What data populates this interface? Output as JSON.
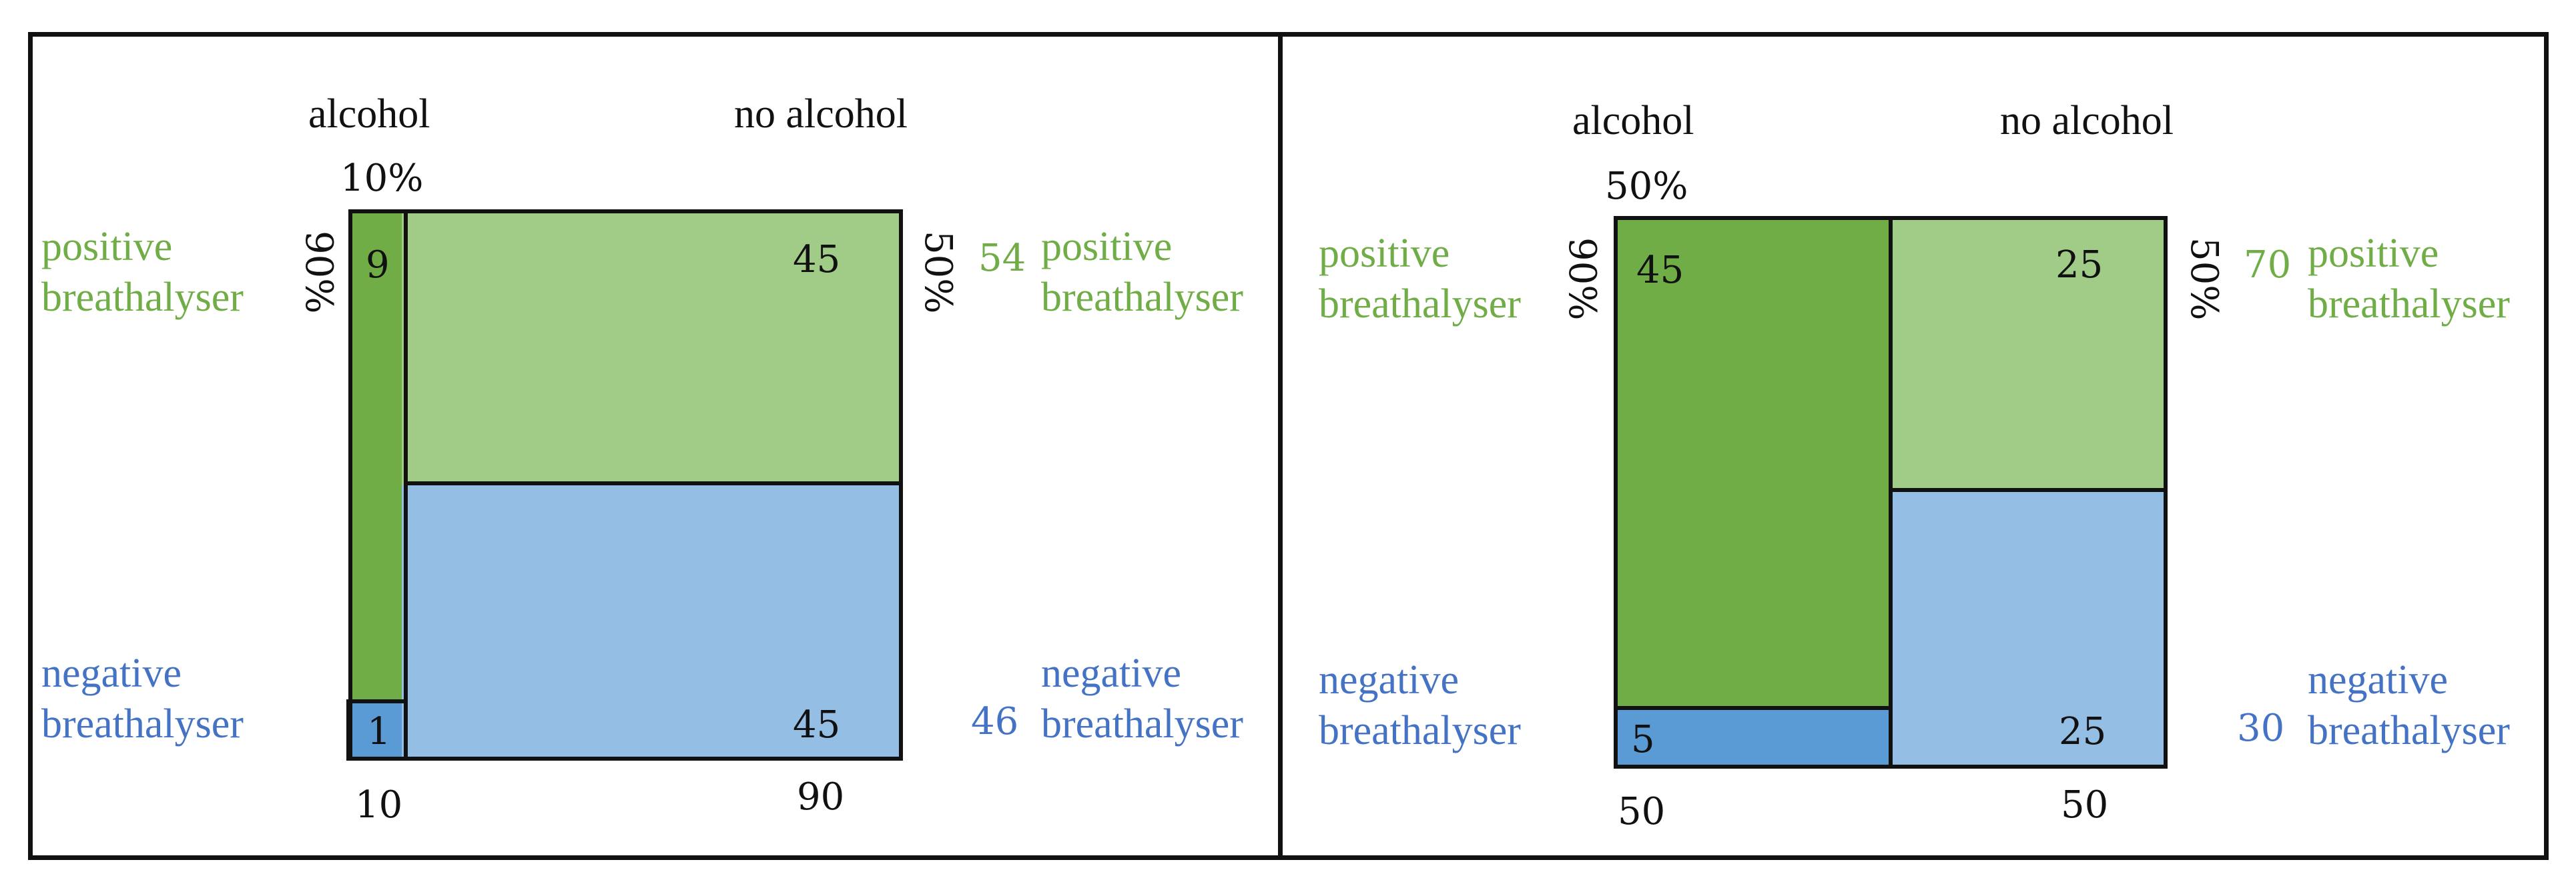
{
  "colors": {
    "positive_text": "#70ad47",
    "negative_text": "#4472c4",
    "alcohol_positive": "#70ad47",
    "no_alcohol_positive": "#a0cc87",
    "no_alcohol_negative": "#94bee4",
    "alcohol_negative": "#5b9bd5"
  },
  "left": {
    "col_alcohol": "alcohol",
    "col_no_alcohol": "no alcohol",
    "alcohol_share": "10%",
    "sensitivity": "90%",
    "false_positive_rate": "50%",
    "row_positive": "positive\nbreathalyser",
    "row_negative": "negative\nbreathalyser",
    "counts": {
      "alc_pos": "9",
      "noalc_pos": "45",
      "alc_neg": "1",
      "noalc_neg": "45"
    },
    "col_totals": {
      "alcohol": "10",
      "no_alcohol": "90"
    },
    "row_totals": {
      "positive": "54",
      "negative": "46"
    }
  },
  "right": {
    "col_alcohol": "alcohol",
    "col_no_alcohol": "no alcohol",
    "alcohol_share": "50%",
    "sensitivity": "90%",
    "false_positive_rate": "50%",
    "row_positive": "positive\nbreathalyser",
    "row_negative": "negative\nbreathalyser",
    "counts": {
      "alc_pos": "45",
      "noalc_pos": "25",
      "alc_neg": "5",
      "noalc_neg": "25"
    },
    "col_totals": {
      "alcohol": "50",
      "no_alcohol": "50"
    },
    "row_totals": {
      "positive": "70",
      "negative": "30"
    }
  }
}
